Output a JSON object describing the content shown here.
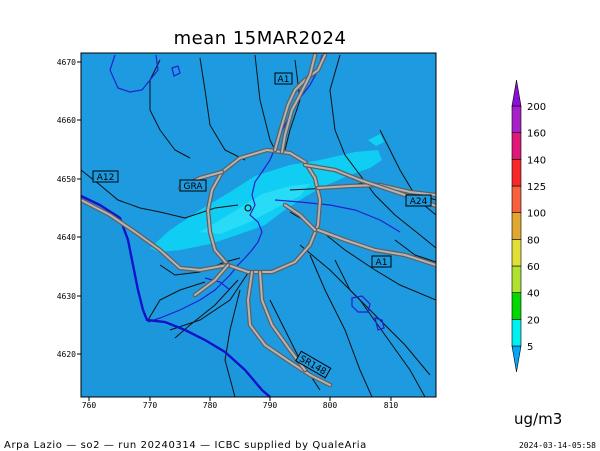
{
  "title": "mean 15MAR2024",
  "footer": {
    "left": "Arpa Lazio — so2 — run 20240314 — ICBC supplied by QualeAria",
    "right": "2024-03-14-05:58"
  },
  "units": "ug/m3",
  "x_ticks": [
    "760",
    "770",
    "780",
    "790",
    "800",
    "810"
  ],
  "y_ticks": [
    "4670",
    "4660",
    "4650",
    "4640",
    "4630",
    "4620"
  ],
  "road_labels": [
    {
      "id": "a1-north",
      "text": "A1"
    },
    {
      "id": "a12",
      "text": "A12"
    },
    {
      "id": "gra",
      "text": "GRA"
    },
    {
      "id": "a24",
      "text": "A24"
    },
    {
      "id": "a1-south",
      "text": "A1"
    },
    {
      "id": "sr148",
      "text": "SR148"
    }
  ],
  "legend": {
    "levels": [
      "5",
      "20",
      "40",
      "60",
      "80",
      "100",
      "125",
      "140",
      "160",
      "200"
    ],
    "colors": [
      "#00a8f8",
      "#00f0f0",
      "#00d800",
      "#b0e030",
      "#e0e038",
      "#e0a830",
      "#f86040",
      "#f82828",
      "#e0187a",
      "#a820c8",
      "#8a10d8"
    ]
  },
  "colors": {
    "background_field": "#1e9be0",
    "plume": "#10d0f4"
  }
}
